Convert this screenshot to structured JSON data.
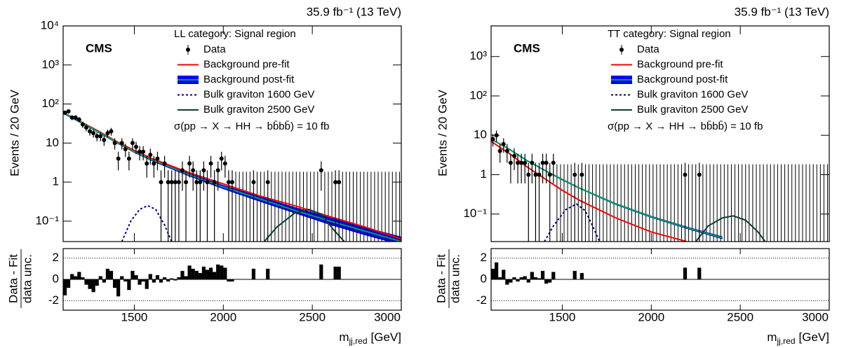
{
  "chart_data": [
    {
      "type": "line",
      "log_y": true,
      "lumi_label": "35.9 fb⁻¹ (13 TeV)",
      "experiment": "CMS",
      "legend_title": "LL category: Signal region",
      "annotation": "σ(pp → X → HH → bb̄bb̄) = 10 fb",
      "ylabel": "Events / 20 GeV",
      "xlabel": "m",
      "xlabel_subscript": "jj,red",
      "xlabel_unit": "[GeV]",
      "xlim": [
        1100,
        3000
      ],
      "xticks": [
        1500,
        2000,
        2500,
        3000
      ],
      "ylim": [
        0.03,
        10000
      ],
      "yticks": [
        {
          "value": 0.1,
          "label": "10⁻¹"
        },
        1,
        10,
        {
          "value": 100,
          "label": "10²"
        },
        {
          "value": 1000,
          "label": "10³"
        },
        {
          "value": 10000,
          "label": "10⁴"
        }
      ],
      "data": {
        "name": "Data",
        "color": "#000000",
        "x": [
          1110,
          1130,
          1150,
          1170,
          1190,
          1210,
          1230,
          1250,
          1270,
          1290,
          1310,
          1330,
          1350,
          1370,
          1390,
          1410,
          1430,
          1450,
          1470,
          1490,
          1510,
          1530,
          1550,
          1570,
          1590,
          1610,
          1630,
          1650,
          1670,
          1690,
          1710,
          1730,
          1750,
          1770,
          1790,
          1810,
          1830,
          1850,
          1870,
          1890,
          1910,
          1930,
          1950,
          1970,
          1990,
          2010,
          2030,
          2050,
          2170,
          2250,
          2550,
          2630,
          2650
        ],
        "values": [
          60,
          65,
          45,
          45,
          40,
          30,
          25,
          20,
          18,
          15,
          15,
          12,
          18,
          20,
          10,
          4,
          10,
          7,
          4,
          10,
          8,
          6,
          6,
          3,
          5,
          3,
          4,
          1,
          3,
          1,
          1,
          1,
          1,
          2,
          1,
          3,
          2,
          1,
          1,
          2,
          1,
          3,
          1,
          2,
          4,
          3,
          1,
          1,
          1,
          1,
          2,
          1,
          1
        ],
        "errors": [
          7.7,
          8.1,
          6.7,
          6.7,
          6.3,
          5.5,
          5,
          4.5,
          4.2,
          3.9,
          3.9,
          3.5,
          4.2,
          4.5,
          3.2,
          2,
          3.2,
          2.6,
          2,
          3.2,
          2.8,
          2.4,
          2.4,
          1.7,
          2.2,
          1.7,
          2,
          1,
          1.7,
          1,
          1,
          1,
          1,
          1.4,
          1,
          1.7,
          1.4,
          1,
          1,
          1.4,
          1,
          1.7,
          1,
          1.4,
          2,
          1.7,
          1,
          1,
          1,
          1,
          1.4,
          1,
          1
        ]
      },
      "empty_bins": {
        "upper": 1.84,
        "x": [
          2070,
          2090,
          2110,
          2130,
          2150,
          2190,
          2210,
          2230,
          2270,
          2290,
          2310,
          2330,
          2350,
          2370,
          2390,
          2410,
          2430,
          2450,
          2470,
          2490,
          2510,
          2530,
          2570,
          2590,
          2610,
          2670,
          2690,
          2710,
          2730,
          2750,
          2770,
          2790,
          2810,
          2830,
          2850,
          2870,
          2890,
          2910,
          2930,
          2950,
          2970,
          2990
        ]
      },
      "series": [
        {
          "name": "Background pre-fit",
          "color": "#ff0000",
          "x": [
            1100,
            1200,
            1300,
            1400,
            1500,
            1600,
            1800,
            2000,
            2200,
            2400,
            2600,
            2800,
            3000
          ],
          "values": [
            60,
            35,
            20,
            11,
            6.5,
            4,
            1.8,
            0.9,
            0.45,
            0.25,
            0.13,
            0.07,
            0.035
          ]
        },
        {
          "name": "Background post-fit",
          "color": "#00a060",
          "band_color": "#0000ff",
          "x": [
            1100,
            1200,
            1300,
            1400,
            1500,
            1600,
            1800,
            2000,
            2200,
            2400,
            2600,
            2800,
            3000
          ],
          "values": [
            60,
            34,
            19,
            10.5,
            6,
            3.7,
            1.6,
            0.75,
            0.38,
            0.19,
            0.1,
            0.055,
            0.03
          ],
          "band_upper": [
            64,
            36,
            20,
            11.2,
            6.4,
            4,
            1.75,
            0.84,
            0.44,
            0.23,
            0.125,
            0.07,
            0.04
          ],
          "band_lower": [
            56,
            32,
            18,
            9.8,
            5.6,
            3.4,
            1.45,
            0.66,
            0.32,
            0.16,
            0.08,
            0.043,
            0.023
          ]
        },
        {
          "name": "Bulk graviton 1600 GeV",
          "color": "#000080",
          "line_style": "dashed",
          "x": [
            1430,
            1480,
            1530,
            1575,
            1620,
            1670,
            1710
          ],
          "values": [
            0.03,
            0.1,
            0.2,
            0.25,
            0.2,
            0.08,
            0.03
          ]
        },
        {
          "name": "Bulk graviton 2500 GeV",
          "color": "#0b3b3b",
          "x": [
            2230,
            2300,
            2400,
            2480,
            2550,
            2620,
            2680
          ],
          "values": [
            0.03,
            0.07,
            0.16,
            0.2,
            0.15,
            0.06,
            0.03
          ]
        }
      ],
      "ratio": {
        "ylabel_numerator": "Data - Fit",
        "ylabel_denominator": "data unc.",
        "ylim": [
          -2.9,
          2.9
        ],
        "yticks": [
          -2,
          0,
          2
        ],
        "values": [
          -1.5,
          -0.8,
          0.5,
          0.3,
          0.7,
          0.2,
          -0.5,
          -0.9,
          -1.2,
          -0.6,
          0.3,
          -0.3,
          1.0,
          0.8,
          -0.8,
          -1.6,
          0.3,
          -0.2,
          -1.0,
          0.8,
          0.4,
          -0.5,
          -0.2,
          -0.9,
          0.5,
          -0.3,
          0.4,
          -0.3,
          0.2,
          -0.2,
          0.1,
          -0.1,
          0.2,
          0.8,
          0.3,
          1.3,
          1.0,
          0.8,
          0.6,
          1.2,
          0.9,
          1.1,
          0.7,
          1.4,
          1.3,
          1.1,
          -0.2,
          -0.2,
          1.0,
          1.0,
          1.4,
          1.2,
          1.2
        ]
      }
    },
    {
      "type": "line",
      "log_y": true,
      "lumi_label": "35.9 fb⁻¹ (13 TeV)",
      "experiment": "CMS",
      "legend_title": "TT category: Signal region",
      "annotation": "σ(pp → X → HH → bb̄bb̄) = 10 fb",
      "ylabel": "Events / 20 GeV",
      "xlabel": "m",
      "xlabel_subscript": "jj,red",
      "xlabel_unit": "[GeV]",
      "xlim": [
        1100,
        3000
      ],
      "xticks": [
        1500,
        2000,
        2500,
        3000
      ],
      "ylim": [
        0.02,
        6000
      ],
      "yticks": [
        {
          "value": 0.1,
          "label": "10⁻¹"
        },
        1,
        10,
        {
          "value": 100,
          "label": "10²"
        },
        {
          "value": 1000,
          "label": "10³"
        }
      ],
      "data": {
        "name": "Data",
        "color": "#000000",
        "x": [
          1110,
          1130,
          1150,
          1170,
          1190,
          1210,
          1230,
          1250,
          1270,
          1290,
          1310,
          1330,
          1350,
          1370,
          1390,
          1410,
          1430,
          1450,
          1570,
          1610,
          2190,
          2270
        ],
        "values": [
          8,
          10,
          4,
          6,
          4,
          2,
          3,
          2,
          2,
          2,
          1,
          2,
          1,
          1,
          2,
          2,
          1,
          2,
          1,
          1,
          1,
          1
        ],
        "errors": [
          2.8,
          3.2,
          2,
          2.4,
          2,
          1.4,
          1.7,
          1.4,
          1.4,
          1.4,
          1,
          1.4,
          1,
          1,
          1.4,
          1.4,
          1,
          1.4,
          1,
          1,
          1,
          1
        ]
      },
      "empty_bins": {
        "upper": 1.84,
        "x": [
          1470,
          1490,
          1510,
          1530,
          1550,
          1590,
          1630,
          1650,
          1670,
          1690,
          1710,
          1730,
          1750,
          1770,
          1790,
          1810,
          1830,
          1850,
          1870,
          1890,
          1910,
          1930,
          1950,
          1970,
          1990,
          2010,
          2030,
          2050,
          2070,
          2090,
          2110,
          2130,
          2150,
          2170,
          2210,
          2230,
          2250,
          2290,
          2310,
          2330,
          2350,
          2370,
          2390,
          2410,
          2430,
          2450,
          2470,
          2490,
          2510,
          2530,
          2550,
          2570,
          2590,
          2610,
          2630,
          2650,
          2670,
          2690,
          2710,
          2730,
          2750,
          2770,
          2790,
          2810,
          2830,
          2850,
          2870,
          2890,
          2910,
          2930,
          2950,
          2970,
          2990
        ]
      },
      "series": [
        {
          "name": "Background pre-fit",
          "color": "#ff0000",
          "x": [
            1100,
            1200,
            1300,
            1400,
            1500,
            1600,
            1800,
            2000,
            2200
          ],
          "values": [
            7,
            3.5,
            1.6,
            0.8,
            0.4,
            0.22,
            0.08,
            0.035,
            0.02
          ]
        },
        {
          "name": "Background post-fit",
          "color": "#00a060",
          "band_color": "#0000ff",
          "x": [
            1100,
            1200,
            1300,
            1400,
            1500,
            1600,
            1800,
            2000,
            2200,
            2400
          ],
          "values": [
            8,
            4.5,
            2.3,
            1.3,
            0.75,
            0.45,
            0.18,
            0.085,
            0.045,
            0.025
          ],
          "band_upper": [
            8.3,
            4.7,
            2.4,
            1.36,
            0.79,
            0.47,
            0.19,
            0.09,
            0.048,
            0.027
          ],
          "band_lower": [
            7.7,
            4.3,
            2.2,
            1.24,
            0.71,
            0.43,
            0.17,
            0.08,
            0.042,
            0.023
          ]
        },
        {
          "name": "Bulk graviton 1600 GeV",
          "color": "#000080",
          "line_style": "dashed",
          "x": [
            1400,
            1450,
            1520,
            1580,
            1630,
            1680,
            1710
          ],
          "values": [
            0.02,
            0.05,
            0.13,
            0.18,
            0.12,
            0.04,
            0.02
          ]
        },
        {
          "name": "Bulk graviton 2500 GeV",
          "color": "#0b3b3b",
          "x": [
            2250,
            2320,
            2400,
            2460,
            2530,
            2600,
            2640
          ],
          "values": [
            0.02,
            0.05,
            0.08,
            0.09,
            0.07,
            0.035,
            0.02
          ]
        }
      ],
      "ratio": {
        "ylabel_numerator": "Data - Fit",
        "ylabel_denominator": "data unc.",
        "ylim": [
          -2.9,
          2.9
        ],
        "yticks": [
          -2,
          0,
          2
        ],
        "values": [
          1.0,
          1.6,
          0.2,
          0.9,
          -0.5,
          -0.3,
          0.2,
          -0.2,
          0.2,
          0.3,
          -0.3,
          0.7,
          0.2,
          0.1,
          0.8,
          -0.4,
          -0.3,
          0.7,
          0.8,
          0.6,
          1.1,
          1.1
        ]
      }
    }
  ]
}
